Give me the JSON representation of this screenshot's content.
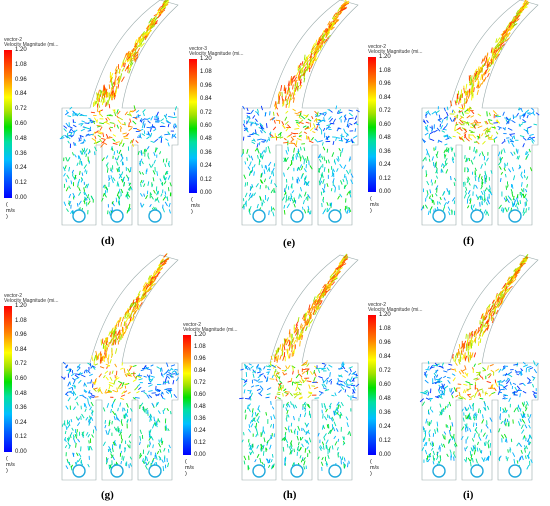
{
  "panels": [
    {
      "caption": "(d)",
      "legend_title": "vector-2",
      "legend_subtitle": "Velocity Magnitude (mi..."
    },
    {
      "caption": "(e)",
      "legend_title": "vector-3",
      "legend_subtitle": "Velocity Magnitude (mi..."
    },
    {
      "caption": "(f)",
      "legend_title": "vector-2",
      "legend_subtitle": "Velocity Magnitude (mi..."
    },
    {
      "caption": "(g)",
      "legend_title": "vector-2",
      "legend_subtitle": "Velocity Magnitude (mi..."
    },
    {
      "caption": "(h)",
      "legend_title": "vector-2",
      "legend_subtitle": "Velocity Magnitude (mi..."
    },
    {
      "caption": "(i)",
      "legend_title": "vector-2",
      "legend_subtitle": "Velocity Magnitude (mi..."
    }
  ],
  "legend_ticks": [
    "1.20",
    "1.08",
    "0.96",
    "0.84",
    "0.72",
    "0.60",
    "0.48",
    "0.36",
    "0.24",
    "0.12",
    "0.00"
  ],
  "legend_unit": "( m/s )"
}
